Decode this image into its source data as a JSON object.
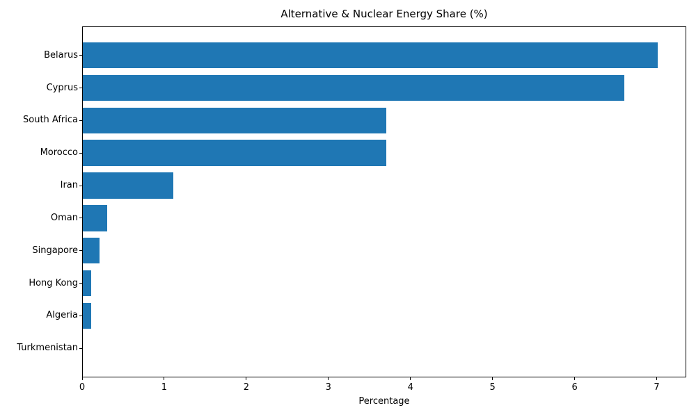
{
  "chart_data": {
    "type": "bar",
    "orientation": "horizontal",
    "title": "Alternative & Nuclear Energy Share (%)",
    "xlabel": "Percentage",
    "ylabel": "",
    "categories": [
      "Belarus",
      "Cyprus",
      "South Africa",
      "Morocco",
      "Iran",
      "Oman",
      "Singapore",
      "Hong Kong",
      "Algeria",
      "Turkmenistan"
    ],
    "values": [
      7.0,
      6.6,
      3.7,
      3.7,
      1.1,
      0.3,
      0.2,
      0.1,
      0.1,
      0.0
    ],
    "xlim": [
      0,
      7.36
    ],
    "xticks": [
      "0",
      "1",
      "2",
      "3",
      "4",
      "5",
      "6",
      "7"
    ],
    "bar_color": "#1f77b4",
    "grid": false,
    "legend": null
  }
}
